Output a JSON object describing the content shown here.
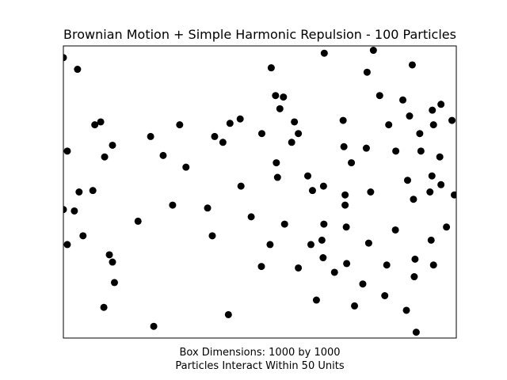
{
  "chart_data": {
    "type": "scatter",
    "title": "Brownian Motion + Simple Harmonic Repulsion - 100 Particles",
    "xlabel_lines": [
      "Box Dimensions: 1000 by 1000",
      "Particles Interact Within 50 Units"
    ],
    "ylabel": "",
    "xlim": [
      0,
      1000
    ],
    "ylim": [
      0,
      1000
    ],
    "ticks": false,
    "grid": false,
    "legend": "none",
    "marker_color": "#000000",
    "points": [
      [
        0,
        960
      ],
      [
        36,
        920
      ],
      [
        10,
        640
      ],
      [
        0,
        440
      ],
      [
        28,
        435
      ],
      [
        40,
        500
      ],
      [
        10,
        320
      ],
      [
        50,
        350
      ],
      [
        75,
        505
      ],
      [
        80,
        730
      ],
      [
        95,
        740
      ],
      [
        125,
        660
      ],
      [
        105,
        620
      ],
      [
        117,
        285
      ],
      [
        125,
        260
      ],
      [
        130,
        190
      ],
      [
        103,
        105
      ],
      [
        190,
        400
      ],
      [
        222,
        690
      ],
      [
        254,
        625
      ],
      [
        278,
        455
      ],
      [
        296,
        730
      ],
      [
        312,
        585
      ],
      [
        230,
        40
      ],
      [
        367,
        445
      ],
      [
        379,
        350
      ],
      [
        385,
        690
      ],
      [
        406,
        670
      ],
      [
        424,
        735
      ],
      [
        450,
        750
      ],
      [
        452,
        520
      ],
      [
        478,
        415
      ],
      [
        420,
        80
      ],
      [
        505,
        700
      ],
      [
        504,
        245
      ],
      [
        526,
        320
      ],
      [
        529,
        925
      ],
      [
        540,
        830
      ],
      [
        542,
        600
      ],
      [
        545,
        550
      ],
      [
        551,
        785
      ],
      [
        560,
        825
      ],
      [
        563,
        390
      ],
      [
        581,
        670
      ],
      [
        588,
        740
      ],
      [
        598,
        700
      ],
      [
        598,
        240
      ],
      [
        622,
        555
      ],
      [
        630,
        320
      ],
      [
        634,
        505
      ],
      [
        644,
        130
      ],
      [
        658,
        335
      ],
      [
        661,
        275
      ],
      [
        662,
        520
      ],
      [
        663,
        390
      ],
      [
        664,
        975
      ],
      [
        690,
        225
      ],
      [
        712,
        745
      ],
      [
        714,
        655
      ],
      [
        717,
        490
      ],
      [
        717,
        455
      ],
      [
        720,
        380
      ],
      [
        721,
        255
      ],
      [
        733,
        600
      ],
      [
        741,
        110
      ],
      [
        762,
        185
      ],
      [
        771,
        650
      ],
      [
        773,
        910
      ],
      [
        777,
        325
      ],
      [
        782,
        500
      ],
      [
        789,
        985
      ],
      [
        805,
        830
      ],
      [
        818,
        145
      ],
      [
        823,
        250
      ],
      [
        828,
        730
      ],
      [
        845,
        370
      ],
      [
        846,
        640
      ],
      [
        864,
        815
      ],
      [
        873,
        95
      ],
      [
        876,
        540
      ],
      [
        881,
        760
      ],
      [
        888,
        935
      ],
      [
        891,
        475
      ],
      [
        893,
        210
      ],
      [
        895,
        270
      ],
      [
        898,
        20
      ],
      [
        907,
        700
      ],
      [
        910,
        640
      ],
      [
        933,
        500
      ],
      [
        936,
        335
      ],
      [
        938,
        555
      ],
      [
        939,
        780
      ],
      [
        942,
        250
      ],
      [
        942,
        730
      ],
      [
        958,
        620
      ],
      [
        961,
        525
      ],
      [
        975,
        380
      ],
      [
        989,
        745
      ],
      [
        995,
        490
      ],
      [
        961,
        800
      ]
    ]
  }
}
